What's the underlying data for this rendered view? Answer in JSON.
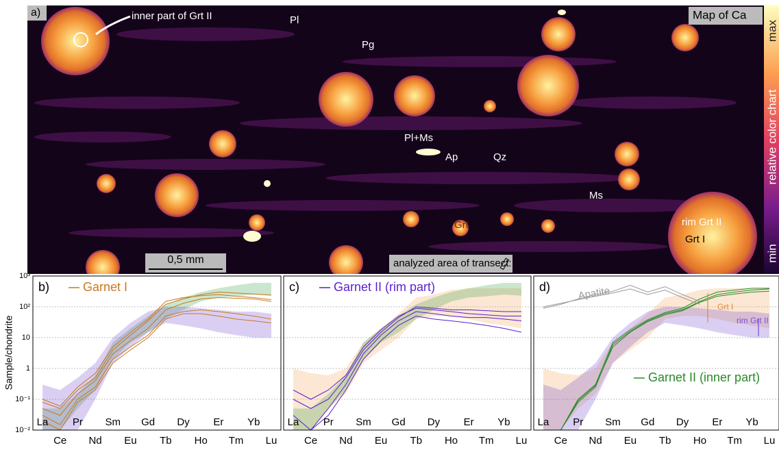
{
  "map": {
    "panel_label": "a)",
    "title": "Map of Ca",
    "labels": [
      "inner part of Grt II",
      "Pl",
      "Pg",
      "Pl+Ms",
      "Ap",
      "Qz",
      "Ms",
      "Grt",
      "rim Grt II",
      "Grt I"
    ],
    "scale_bar": "0,5 mm",
    "legend_text": "analyzed area of transect:",
    "colorbar": {
      "max": "max",
      "label": "relative color chart",
      "min": "min"
    }
  },
  "chart_data": [
    {
      "type": "line",
      "panel_label": "b)",
      "y_label": "Sample/chondrite",
      "log": true,
      "grid": true,
      "legend": "upper left",
      "categories": [
        "La",
        "Ce",
        "Pr",
        "Nd",
        "Sm",
        "Eu",
        "Gd",
        "Tb",
        "Dy",
        "Ho",
        "Er",
        "Tm",
        "Yb",
        "Lu"
      ],
      "ylim": [
        0.01,
        1000
      ],
      "yticks": [
        {
          "value": 0.01,
          "label": "10⁻²"
        },
        {
          "value": 0.1,
          "label": "10⁻¹"
        },
        1,
        10,
        {
          "value": 100,
          "label": "10²"
        },
        {
          "value": 1000,
          "label": "10³"
        }
      ],
      "bands": [
        {
          "color": "#2e9b3a",
          "lower": [
            0.01,
            0.01,
            0.05,
            0.2,
            2,
            7,
            15,
            40,
            80,
            150,
            200,
            220,
            250,
            230
          ],
          "upper": [
            0.05,
            0.05,
            0.15,
            0.6,
            7,
            20,
            50,
            120,
            200,
            300,
            400,
            500,
            600,
            600
          ]
        },
        {
          "color": "#6a3fd0",
          "lower": [
            0.01,
            0.01,
            0.01,
            0.1,
            1.5,
            5,
            15,
            30,
            25,
            20,
            15,
            12,
            10,
            10
          ],
          "upper": [
            0.3,
            0.2,
            0.5,
            1.5,
            10,
            30,
            70,
            100,
            100,
            90,
            80,
            70,
            70,
            60
          ]
        }
      ],
      "series": [
        {
          "name": "Garnet I",
          "color": "#c8781e",
          "values": [
            0.05,
            0.03,
            0.15,
            0.4,
            3,
            8,
            20,
            80,
            130,
            180,
            200,
            190,
            180,
            150
          ]
        },
        {
          "color": "#c8781e",
          "values": [
            0.1,
            0.06,
            0.25,
            0.7,
            5,
            15,
            40,
            150,
            200,
            230,
            250,
            220,
            200,
            170
          ]
        },
        {
          "color": "#c8781e",
          "values": [
            0.03,
            0.015,
            0.1,
            0.25,
            2,
            5,
            12,
            50,
            70,
            80,
            70,
            60,
            50,
            40
          ]
        },
        {
          "color": "#c8781e",
          "values": [
            0.08,
            0.05,
            0.2,
            0.5,
            4,
            12,
            35,
            120,
            180,
            250,
            300,
            280,
            260,
            240
          ]
        },
        {
          "color": "#c8781e",
          "values": [
            0.02,
            0.01,
            0.08,
            0.2,
            1.5,
            4,
            10,
            40,
            60,
            60,
            50,
            40,
            35,
            30
          ]
        }
      ]
    },
    {
      "type": "line",
      "panel_label": "c)",
      "log": true,
      "grid": true,
      "legend": "upper left",
      "categories": [
        "La",
        "Ce",
        "Pr",
        "Nd",
        "Sm",
        "Eu",
        "Gd",
        "Tb",
        "Dy",
        "Ho",
        "Er",
        "Tm",
        "Yb",
        "Lu"
      ],
      "ylim": [
        0.01,
        1000
      ],
      "bands": [
        {
          "color": "#f0a050",
          "lower": [
            0.01,
            0.01,
            0.05,
            0.15,
            1.5,
            4,
            10,
            40,
            50,
            50,
            40,
            30,
            25,
            20
          ],
          "upper": [
            1,
            0.7,
            0.6,
            1,
            7,
            20,
            60,
            200,
            250,
            350,
            400,
            400,
            400,
            400
          ]
        },
        {
          "color": "#2e9b3a",
          "lower": [
            0.01,
            0.01,
            0.05,
            0.2,
            2,
            7,
            15,
            40,
            80,
            150,
            200,
            220,
            250,
            230
          ],
          "upper": [
            0.05,
            0.05,
            0.15,
            0.6,
            7,
            20,
            50,
            120,
            200,
            300,
            400,
            500,
            600,
            600
          ]
        }
      ],
      "series": [
        {
          "name": "Garnet II (rim part)",
          "color": "#5a1fd0",
          "values": [
            0.03,
            0.01,
            0.05,
            0.3,
            3,
            12,
            35,
            70,
            60,
            50,
            45,
            45,
            40,
            35
          ]
        },
        {
          "color": "#5a1fd0",
          "values": [
            0.2,
            0.1,
            0.2,
            0.6,
            5,
            18,
            50,
            90,
            80,
            70,
            60,
            55,
            50,
            50
          ]
        },
        {
          "color": "#5a1fd0",
          "values": [
            0.01,
            0.01,
            0.03,
            0.2,
            2,
            8,
            25,
            50,
            40,
            35,
            30,
            25,
            20,
            15
          ]
        },
        {
          "color": "#5a1fd0",
          "values": [
            0.1,
            0.05,
            0.1,
            0.5,
            4,
            15,
            45,
            100,
            90,
            80,
            80,
            75,
            70,
            70
          ]
        }
      ]
    },
    {
      "type": "line",
      "panel_label": "d)",
      "log": true,
      "grid": true,
      "legend": "lower right",
      "categories": [
        "La",
        "Ce",
        "Pr",
        "Nd",
        "Sm",
        "Eu",
        "Gd",
        "Tb",
        "Dy",
        "Ho",
        "Er",
        "Tm",
        "Yb",
        "Lu"
      ],
      "ylim": [
        0.01,
        1000
      ],
      "bands": [
        {
          "color": "#f0a050",
          "lower": [
            0.01,
            0.01,
            0.05,
            0.15,
            1.5,
            4,
            10,
            40,
            50,
            50,
            40,
            30,
            25,
            20
          ],
          "upper": [
            1,
            0.7,
            0.6,
            1,
            7,
            20,
            60,
            200,
            250,
            350,
            400,
            400,
            400,
            400
          ]
        },
        {
          "color": "#6a3fd0",
          "lower": [
            0.01,
            0.01,
            0.01,
            0.1,
            1.5,
            5,
            15,
            30,
            25,
            20,
            15,
            12,
            10,
            10
          ],
          "upper": [
            0.3,
            0.2,
            0.5,
            1.5,
            10,
            30,
            70,
            100,
            100,
            90,
            80,
            70,
            70,
            60
          ]
        }
      ],
      "series": [
        {
          "name": "Garnet II (inner part)",
          "color": "#2a8a2a",
          "values": [
            0.01,
            0.01,
            0.08,
            0.25,
            6,
            16,
            35,
            60,
            80,
            150,
            250,
            300,
            350,
            380
          ]
        },
        {
          "color": "#2a8a2a",
          "values": [
            0.01,
            0.01,
            0.1,
            0.3,
            7,
            18,
            38,
            65,
            90,
            180,
            300,
            350,
            400,
            400
          ]
        },
        {
          "color": "#2a8a2a",
          "values": [
            0.01,
            0.01,
            0.09,
            0.28,
            5,
            15,
            33,
            55,
            75,
            140,
            220,
            260,
            300,
            320
          ]
        },
        {
          "name": "Apatite",
          "color": "#999999",
          "values": [
            90,
            120,
            180,
            250,
            320,
            500,
            300,
            450,
            250,
            150,
            null,
            null,
            null,
            null
          ]
        },
        {
          "color": "#999999",
          "values": [
            100,
            130,
            170,
            220,
            280,
            380,
            250,
            350,
            200,
            120,
            null,
            null,
            null,
            null
          ]
        }
      ],
      "annotations": [
        {
          "text": "Grt I",
          "color": "#e08a3a"
        },
        {
          "text": "rim Grt II",
          "color": "#7a4fe0"
        }
      ]
    }
  ]
}
